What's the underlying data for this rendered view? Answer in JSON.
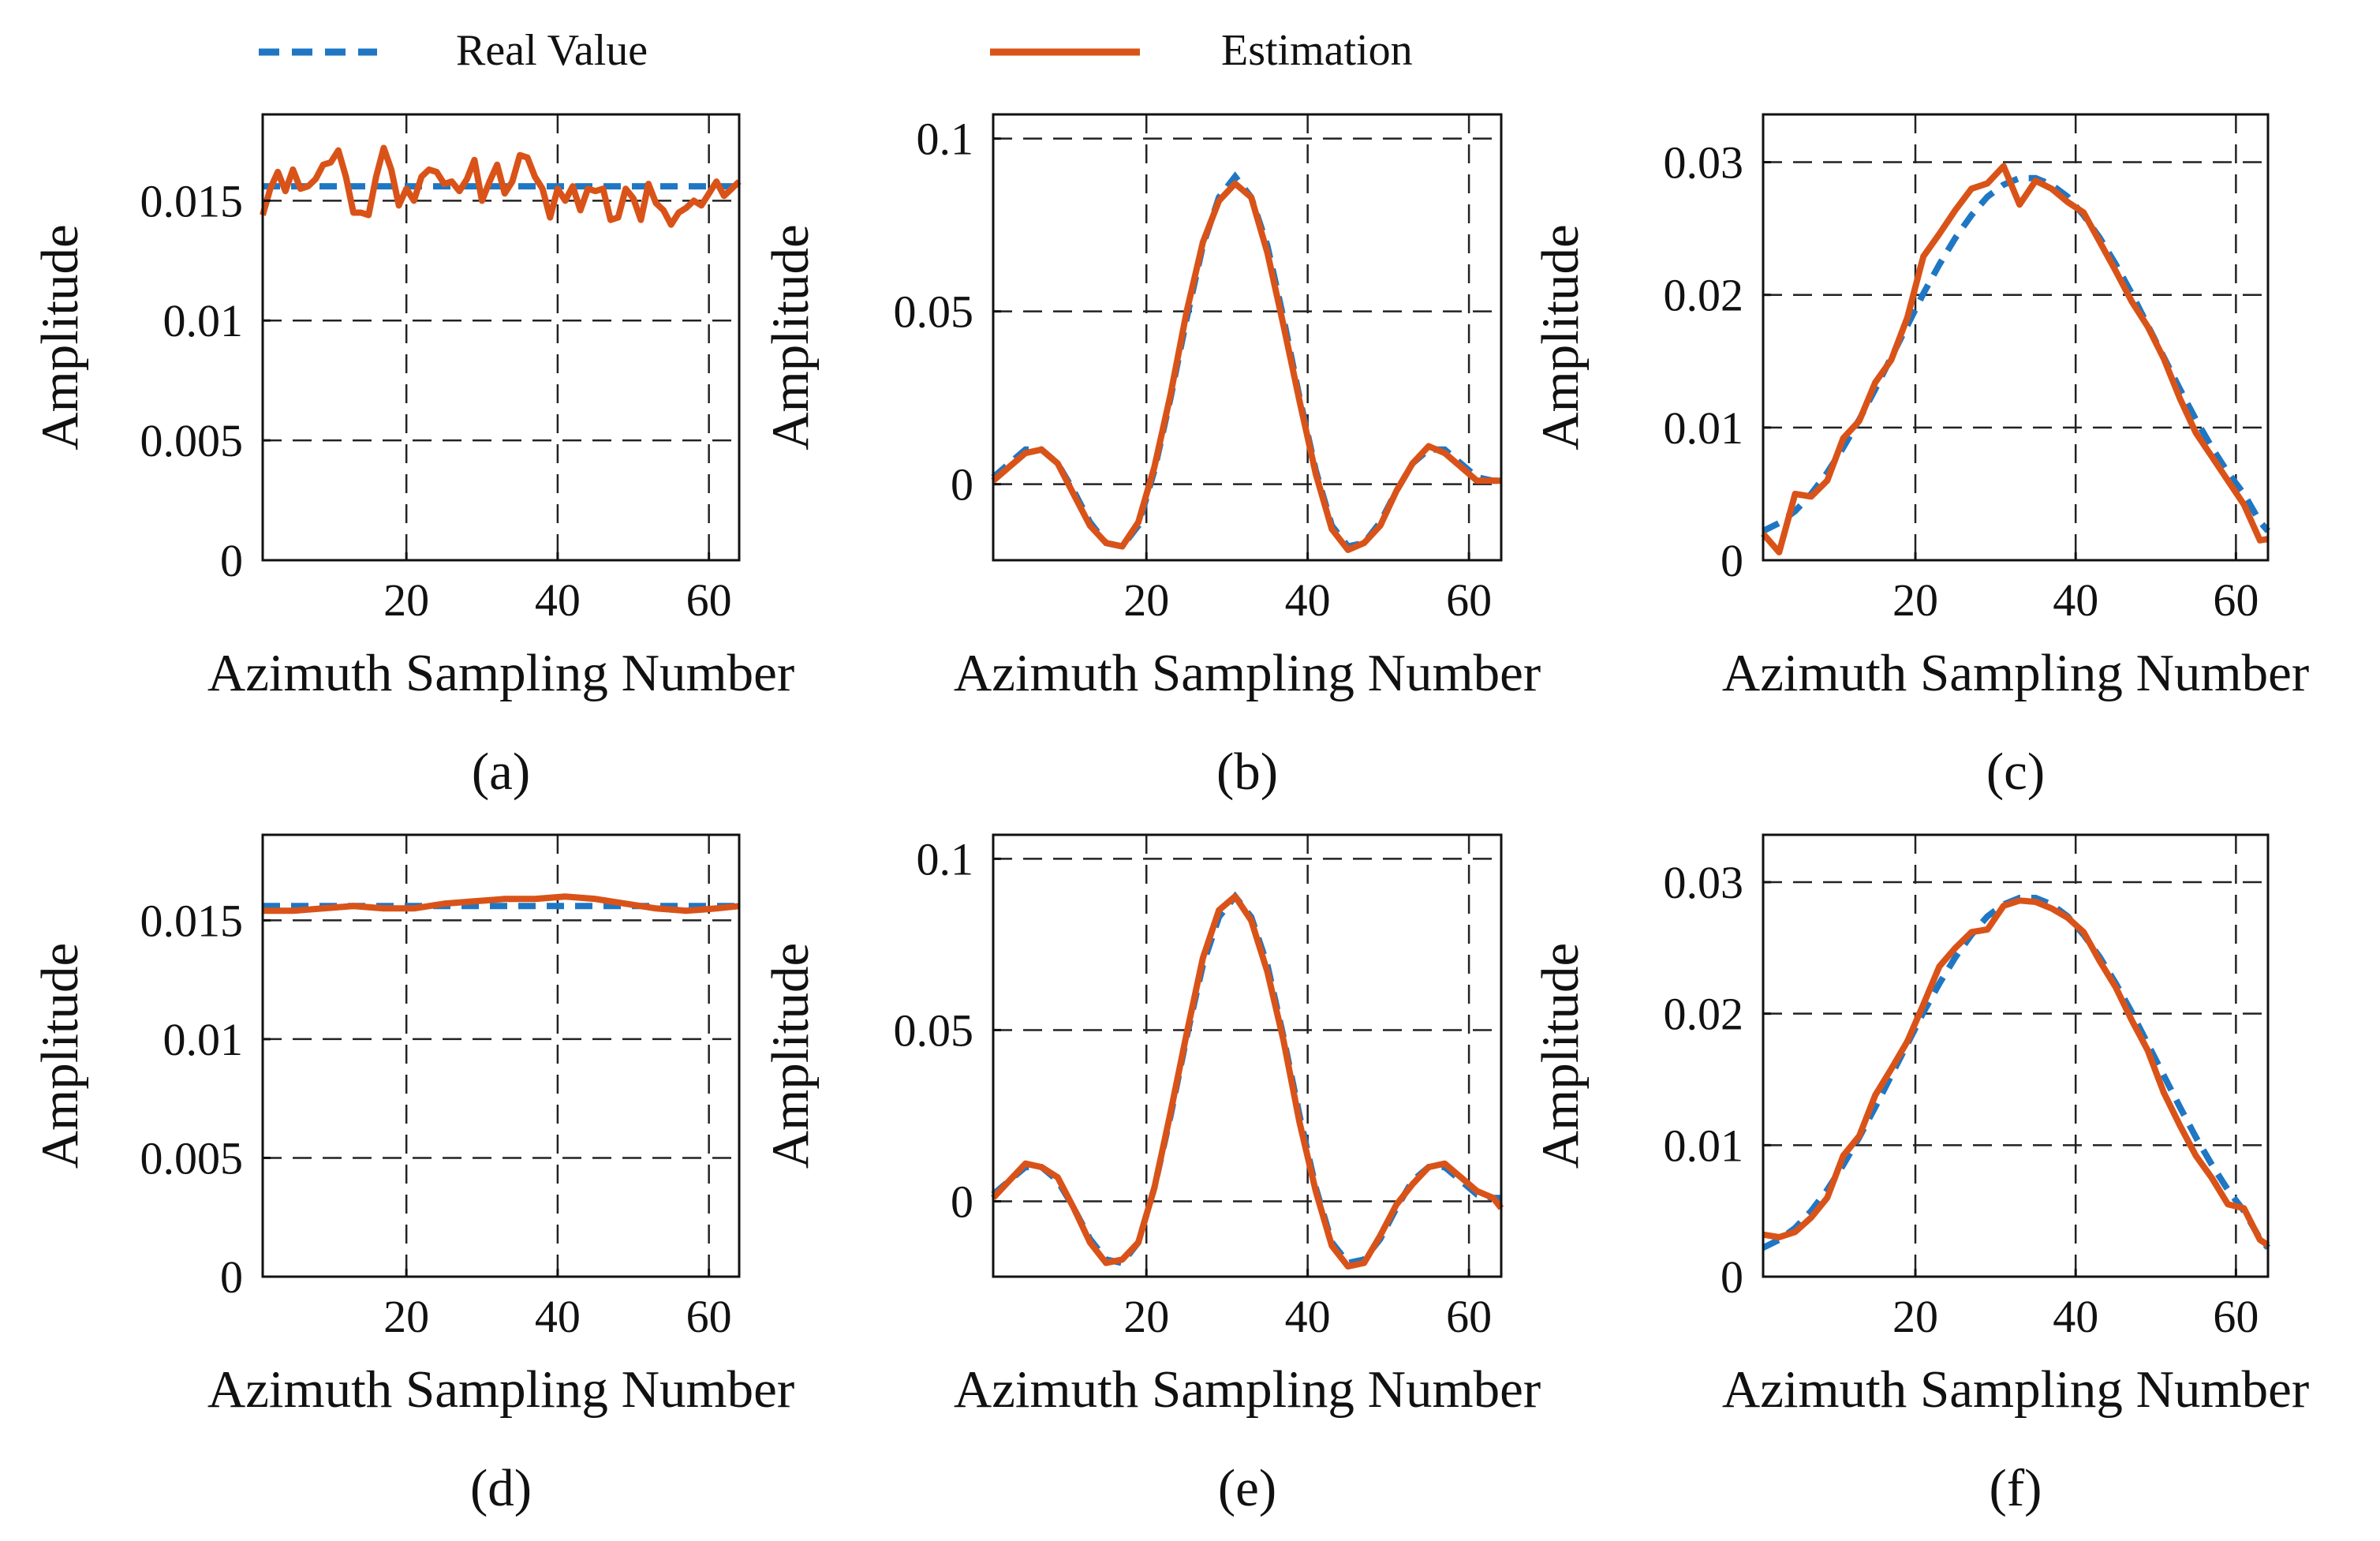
{
  "legend": {
    "placement": "top",
    "entries": [
      {
        "label": "Real Value",
        "color": "#1f77c4",
        "style": "dashed"
      },
      {
        "label": "Estimation",
        "color": "#d95319",
        "style": "solid"
      }
    ]
  },
  "chart_data": [
    {
      "panel": "a",
      "type": "line",
      "xlabel": "Azimuth Sampling Number",
      "ylabel": "Amplitude",
      "xlim": [
        1,
        64
      ],
      "ylim": [
        0,
        0.0186
      ],
      "xticks": [
        20,
        40,
        60
      ],
      "xtick_labels": [
        "20",
        "40",
        "60"
      ],
      "yticks": [
        0,
        0.005,
        0.01,
        0.015
      ],
      "ytick_labels": [
        "0",
        "0.005",
        "0.01",
        "0.015"
      ],
      "grid": true,
      "x": [
        1,
        2,
        3,
        4,
        5,
        6,
        7,
        8,
        9,
        10,
        11,
        12,
        13,
        14,
        15,
        16,
        17,
        18,
        19,
        20,
        21,
        22,
        23,
        24,
        25,
        26,
        27,
        28,
        29,
        30,
        31,
        32,
        33,
        34,
        35,
        36,
        37,
        38,
        39,
        40,
        41,
        42,
        43,
        44,
        45,
        46,
        47,
        48,
        49,
        50,
        51,
        52,
        53,
        54,
        55,
        56,
        57,
        58,
        59,
        60,
        61,
        62,
        63,
        64
      ],
      "series": [
        {
          "name": "Real Value",
          "values": [
            0.0156,
            0.0156,
            0.0156,
            0.0156,
            0.0156,
            0.0156,
            0.0156,
            0.0156,
            0.0156,
            0.0156,
            0.0156,
            0.0156,
            0.0156,
            0.0156,
            0.0156,
            0.0156,
            0.0156,
            0.0156,
            0.0156,
            0.0156,
            0.0156,
            0.0156,
            0.0156,
            0.0156,
            0.0156,
            0.0156,
            0.0156,
            0.0156,
            0.0156,
            0.0156,
            0.0156,
            0.0156,
            0.0156,
            0.0156,
            0.0156,
            0.0156,
            0.0156,
            0.0156,
            0.0156,
            0.0156,
            0.0156,
            0.0156,
            0.0156,
            0.0156,
            0.0156,
            0.0156,
            0.0156,
            0.0156,
            0.0156,
            0.0156,
            0.0156,
            0.0156,
            0.0156,
            0.0156,
            0.0156,
            0.0156,
            0.0156,
            0.0156,
            0.0156,
            0.0156,
            0.0156,
            0.0156,
            0.0156,
            0.0156
          ]
        },
        {
          "name": "Estimation",
          "values": [
            0.0144,
            0.0155,
            0.0162,
            0.0154,
            0.0163,
            0.0155,
            0.0156,
            0.0159,
            0.0165,
            0.0166,
            0.0171,
            0.016,
            0.0145,
            0.0145,
            0.0144,
            0.016,
            0.0172,
            0.0163,
            0.0148,
            0.0155,
            0.015,
            0.016,
            0.0163,
            0.0162,
            0.0157,
            0.0158,
            0.0154,
            0.0159,
            0.0167,
            0.015,
            0.0158,
            0.0165,
            0.0153,
            0.0158,
            0.0169,
            0.0168,
            0.016,
            0.0155,
            0.0143,
            0.0155,
            0.015,
            0.0156,
            0.0146,
            0.0155,
            0.0154,
            0.0155,
            0.0142,
            0.0143,
            0.0155,
            0.0151,
            0.0142,
            0.0157,
            0.0149,
            0.0146,
            0.014,
            0.0145,
            0.0147,
            0.015,
            0.0148,
            0.0153,
            0.0158,
            0.0152,
            0.0155,
            0.0158
          ]
        }
      ]
    },
    {
      "panel": "b",
      "type": "line",
      "xlabel": "Azimuth Sampling Number",
      "ylabel": "Amplitude",
      "xlim": [
        1,
        64
      ],
      "ylim": [
        -0.022,
        0.107
      ],
      "xticks": [
        20,
        40,
        60
      ],
      "xtick_labels": [
        "20",
        "40",
        "60"
      ],
      "yticks": [
        0,
        0.05,
        0.1
      ],
      "ytick_labels": [
        "0",
        "0.05",
        "0.1"
      ],
      "grid": true,
      "x": [
        1,
        3,
        5,
        7,
        9,
        11,
        13,
        15,
        17,
        19,
        21,
        23,
        25,
        27,
        29,
        31,
        33,
        35,
        37,
        39,
        41,
        43,
        45,
        47,
        49,
        51,
        53,
        55,
        57,
        59,
        61,
        63,
        64
      ],
      "series": [
        {
          "name": "Real Value",
          "values": [
            0.002,
            0.006,
            0.01,
            0.01,
            0.006,
            -0.002,
            -0.011,
            -0.017,
            -0.018,
            -0.012,
            0.004,
            0.025,
            0.048,
            0.069,
            0.083,
            0.089,
            0.083,
            0.069,
            0.048,
            0.025,
            0.004,
            -0.012,
            -0.018,
            -0.017,
            -0.011,
            -0.002,
            0.006,
            0.01,
            0.01,
            0.006,
            0.002,
            0.001,
            0.001
          ]
        },
        {
          "name": "Estimation",
          "values": [
            0.001,
            0.005,
            0.009,
            0.01,
            0.006,
            -0.003,
            -0.012,
            -0.017,
            -0.018,
            -0.011,
            0.005,
            0.026,
            0.05,
            0.07,
            0.082,
            0.087,
            0.083,
            0.067,
            0.046,
            0.024,
            0.003,
            -0.013,
            -0.019,
            -0.017,
            -0.012,
            -0.002,
            0.006,
            0.011,
            0.009,
            0.005,
            0.001,
            0.001,
            0.001
          ]
        }
      ]
    },
    {
      "panel": "c",
      "type": "line",
      "xlabel": "Azimuth Sampling Number",
      "ylabel": "Amplitude",
      "xlim": [
        1,
        64
      ],
      "ylim": [
        0,
        0.0336
      ],
      "xticks": [
        20,
        40,
        60
      ],
      "xtick_labels": [
        "20",
        "40",
        "60"
      ],
      "yticks": [
        0,
        0.01,
        0.02,
        0.03
      ],
      "ytick_labels": [
        "0",
        "0.01",
        "0.02",
        "0.03"
      ],
      "grid": true,
      "x": [
        1,
        3,
        5,
        7,
        9,
        11,
        13,
        15,
        17,
        19,
        21,
        23,
        25,
        27,
        29,
        31,
        33,
        35,
        37,
        39,
        41,
        43,
        45,
        47,
        49,
        51,
        53,
        55,
        57,
        59,
        61,
        63,
        64
      ],
      "series": [
        {
          "name": "Real Value",
          "values": [
            0.0022,
            0.0028,
            0.0037,
            0.005,
            0.0066,
            0.0085,
            0.0106,
            0.0129,
            0.0153,
            0.0177,
            0.0201,
            0.0223,
            0.0243,
            0.026,
            0.0274,
            0.0283,
            0.0288,
            0.0288,
            0.0283,
            0.0274,
            0.026,
            0.0243,
            0.0223,
            0.0201,
            0.0177,
            0.0153,
            0.0129,
            0.0106,
            0.0085,
            0.0066,
            0.005,
            0.0029,
            0.0022
          ]
        },
        {
          "name": "Estimation",
          "values": [
            0.002,
            0.0006,
            0.005,
            0.0048,
            0.006,
            0.0092,
            0.0105,
            0.0134,
            0.0151,
            0.0183,
            0.0229,
            0.0246,
            0.0264,
            0.028,
            0.0284,
            0.0297,
            0.0268,
            0.0286,
            0.028,
            0.027,
            0.0262,
            0.024,
            0.0218,
            0.0195,
            0.0176,
            0.0152,
            0.0122,
            0.0096,
            0.0078,
            0.006,
            0.0042,
            0.0015,
            0.0016
          ]
        }
      ]
    },
    {
      "panel": "d",
      "type": "line",
      "xlabel": "Azimuth Sampling Number",
      "ylabel": "Amplitude",
      "xlim": [
        1,
        64
      ],
      "ylim": [
        0,
        0.0186
      ],
      "xticks": [
        20,
        40,
        60
      ],
      "xtick_labels": [
        "20",
        "40",
        "60"
      ],
      "yticks": [
        0,
        0.005,
        0.01,
        0.015
      ],
      "ytick_labels": [
        "0",
        "0.005",
        "0.01",
        "0.015"
      ],
      "grid": true,
      "x": [
        1,
        5,
        9,
        13,
        17,
        21,
        25,
        29,
        33,
        37,
        41,
        45,
        49,
        53,
        57,
        61,
        64
      ],
      "series": [
        {
          "name": "Real Value",
          "values": [
            0.0156,
            0.0156,
            0.0156,
            0.0156,
            0.0156,
            0.0156,
            0.0156,
            0.0156,
            0.0156,
            0.0156,
            0.0156,
            0.0156,
            0.0156,
            0.0156,
            0.0156,
            0.0156,
            0.0156
          ]
        },
        {
          "name": "Estimation",
          "values": [
            0.0154,
            0.0154,
            0.0155,
            0.0156,
            0.0155,
            0.0155,
            0.0157,
            0.0158,
            0.0159,
            0.0159,
            0.016,
            0.0159,
            0.0157,
            0.0155,
            0.0154,
            0.0155,
            0.0156
          ]
        }
      ]
    },
    {
      "panel": "e",
      "type": "line",
      "xlabel": "Azimuth Sampling Number",
      "ylabel": "Amplitude",
      "xlim": [
        1,
        64
      ],
      "ylim": [
        -0.022,
        0.107
      ],
      "xticks": [
        20,
        40,
        60
      ],
      "xtick_labels": [
        "20",
        "40",
        "60"
      ],
      "yticks": [
        0,
        0.05,
        0.1
      ],
      "ytick_labels": [
        "0",
        "0.05",
        "0.1"
      ],
      "grid": true,
      "x": [
        1,
        3,
        5,
        7,
        9,
        11,
        13,
        15,
        17,
        19,
        21,
        23,
        25,
        27,
        29,
        31,
        33,
        35,
        37,
        39,
        41,
        43,
        45,
        47,
        49,
        51,
        53,
        55,
        57,
        59,
        61,
        63,
        64
      ],
      "series": [
        {
          "name": "Real Value",
          "values": [
            0.002,
            0.006,
            0.01,
            0.01,
            0.006,
            -0.002,
            -0.011,
            -0.017,
            -0.018,
            -0.012,
            0.004,
            0.025,
            0.048,
            0.069,
            0.083,
            0.089,
            0.083,
            0.069,
            0.048,
            0.025,
            0.004,
            -0.012,
            -0.018,
            -0.017,
            -0.011,
            -0.002,
            0.006,
            0.01,
            0.01,
            0.006,
            0.002,
            0.001,
            0.001
          ]
        },
        {
          "name": "Estimation",
          "values": [
            0.001,
            0.006,
            0.011,
            0.01,
            0.007,
            -0.002,
            -0.012,
            -0.018,
            -0.017,
            -0.012,
            0.004,
            0.026,
            0.049,
            0.071,
            0.085,
            0.089,
            0.082,
            0.067,
            0.047,
            0.023,
            0.003,
            -0.013,
            -0.019,
            -0.018,
            -0.01,
            -0.001,
            0.005,
            0.01,
            0.011,
            0.007,
            0.003,
            0.001,
            -0.002
          ]
        }
      ]
    },
    {
      "panel": "f",
      "type": "line",
      "xlabel": "Azimuth Sampling Number",
      "ylabel": "Amplitude",
      "xlim": [
        1,
        64
      ],
      "ylim": [
        0,
        0.0336
      ],
      "xticks": [
        20,
        40,
        60
      ],
      "xtick_labels": [
        "20",
        "40",
        "60"
      ],
      "yticks": [
        0,
        0.01,
        0.02,
        0.03
      ],
      "ytick_labels": [
        "0",
        "0.01",
        "0.02",
        "0.03"
      ],
      "grid": true,
      "x": [
        1,
        3,
        5,
        7,
        9,
        11,
        13,
        15,
        17,
        19,
        21,
        23,
        25,
        27,
        29,
        31,
        33,
        35,
        37,
        39,
        41,
        43,
        45,
        47,
        49,
        51,
        53,
        55,
        57,
        59,
        61,
        63,
        64
      ],
      "series": [
        {
          "name": "Real Value",
          "values": [
            0.0022,
            0.0028,
            0.0037,
            0.005,
            0.0066,
            0.0085,
            0.0106,
            0.0129,
            0.0153,
            0.0177,
            0.0201,
            0.0223,
            0.0243,
            0.026,
            0.0274,
            0.0283,
            0.0288,
            0.0288,
            0.0283,
            0.0274,
            0.026,
            0.0243,
            0.0223,
            0.0201,
            0.0177,
            0.0153,
            0.0129,
            0.0106,
            0.0085,
            0.0066,
            0.005,
            0.0029,
            0.0022
          ]
        },
        {
          "name": "Estimation",
          "values": [
            0.0032,
            0.003,
            0.0034,
            0.0045,
            0.006,
            0.0092,
            0.0107,
            0.0138,
            0.0158,
            0.0179,
            0.0207,
            0.0236,
            0.025,
            0.0262,
            0.0264,
            0.0282,
            0.0286,
            0.0285,
            0.028,
            0.0273,
            0.0262,
            0.024,
            0.022,
            0.0195,
            0.0172,
            0.014,
            0.0115,
            0.0092,
            0.0075,
            0.0055,
            0.0052,
            0.0028,
            0.0024
          ]
        }
      ]
    }
  ],
  "panel_labels": [
    "(a)",
    "(b)",
    "(c)",
    "(d)",
    "(e)",
    "(f)"
  ]
}
